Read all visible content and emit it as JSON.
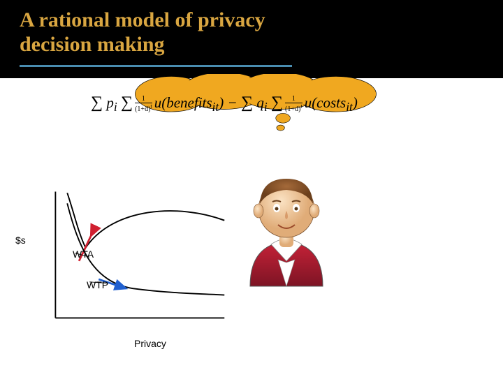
{
  "title": "A rational model of privacy\ndecision making",
  "title_color": "#d9a641",
  "underline_color": "#4a8db0",
  "underline_width": 390,
  "formula": {
    "text_parts": [
      "∑ pᵢ ∑",
      "1/(1+d)ᵗ",
      "u(benefitsᵢₜ) − ∑ qᵢ ∑",
      "1/(1+d)ᵗ",
      "u(costsᵢₜ)"
    ],
    "fontsize": 21
  },
  "thought_cloud": {
    "fill": "#f0a820",
    "stroke": "#000000",
    "bubble_small_fill": "#f0a820"
  },
  "person": {
    "head_color": "#f2c999",
    "hair_color": "#8a5a2e",
    "shirt_color": "#a6192e",
    "collar_color": "#ffffff"
  },
  "chart": {
    "axis_color": "#000000",
    "y_label": "$s",
    "x_label": "Privacy",
    "curves": {
      "wta": {
        "label": "WTA",
        "segment_color": "#d02030",
        "curve_color": "#000000"
      },
      "wtp": {
        "label": "WTP",
        "segment_color": "#2060d0",
        "curve_color": "#000000"
      }
    },
    "leader_color": "#000000"
  }
}
